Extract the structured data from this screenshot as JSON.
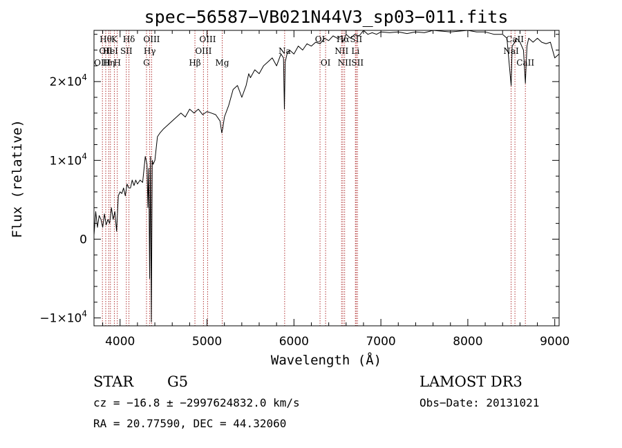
{
  "chart_data": {
    "type": "line",
    "title": "spec−56587−VB021N44V3_sp03−011.fits",
    "xlabel": "Wavelength (Å)",
    "ylabel": "Flux (relative)",
    "xlim": [
      3700,
      9050
    ],
    "ylim": [
      -11000,
      26500
    ],
    "x_ticks": [
      {
        "value": 4000,
        "label": "4000"
      },
      {
        "value": 5000,
        "label": "5000"
      },
      {
        "value": 6000,
        "label": "6000"
      },
      {
        "value": 7000,
        "label": "7000"
      },
      {
        "value": 8000,
        "label": "8000"
      },
      {
        "value": 9000,
        "label": "9000"
      }
    ],
    "y_ticks": [
      {
        "value": -10000,
        "mant": "−1×10",
        "exp": "4"
      },
      {
        "value": 0,
        "mant": "0",
        "exp": ""
      },
      {
        "value": 10000,
        "mant": "1×10",
        "exp": "4"
      },
      {
        "value": 20000,
        "mant": "2×10",
        "exp": "4"
      }
    ],
    "line_color": "#000000",
    "marker_color": "#b03030",
    "series": [
      {
        "x": [
          3700,
          3720,
          3740,
          3760,
          3780,
          3800,
          3820,
          3840,
          3860,
          3880,
          3900,
          3920,
          3940,
          3960,
          3980,
          4000,
          4020,
          4040,
          4060,
          4080,
          4100,
          4120,
          4140,
          4160,
          4180,
          4200,
          4230,
          4260,
          4290,
          4310,
          4320,
          4330,
          4340,
          4350,
          4360,
          4370,
          4380,
          4400,
          4430,
          4460,
          4500,
          4550,
          4600,
          4650,
          4700,
          4750,
          4800,
          4850,
          4900,
          4950,
          5000,
          5050,
          5100,
          5150,
          5170,
          5180,
          5200,
          5250,
          5300,
          5350,
          5400,
          5450,
          5480,
          5500,
          5550,
          5600,
          5650,
          5700,
          5750,
          5800,
          5850,
          5880,
          5890,
          5900,
          5920,
          5950,
          6000,
          6050,
          6100,
          6150,
          6200,
          6250,
          6300,
          6350,
          6400,
          6450,
          6500,
          6550,
          6560,
          6570,
          6600,
          6650,
          6700,
          6750,
          6800,
          6850,
          6900,
          6950,
          7000,
          7100,
          7200,
          7300,
          7400,
          7500,
          7600,
          7700,
          7800,
          7900,
          8000,
          8100,
          8200,
          8300,
          8400,
          8450,
          8498,
          8510,
          8540,
          8560,
          8600,
          8640,
          8662,
          8680,
          8700,
          8750,
          8800,
          8850,
          8900,
          8950,
          9000,
          9050
        ],
        "y": [
          500,
          3500,
          1500,
          3000,
          2500,
          1500,
          3200,
          1800,
          2500,
          2000,
          4000,
          2500,
          3500,
          1000,
          5500,
          6000,
          5800,
          6500,
          5500,
          7000,
          6500,
          6500,
          7500,
          6800,
          7500,
          7000,
          7500,
          7200,
          10500,
          9500,
          4000,
          9000,
          -5000,
          10500,
          -10500,
          10000,
          9500,
          10000,
          13000,
          13500,
          14000,
          14500,
          15000,
          15500,
          16000,
          15500,
          16500,
          16000,
          16500,
          15800,
          16200,
          16000,
          15800,
          15000,
          13500,
          14000,
          15500,
          17000,
          19000,
          19500,
          18000,
          19500,
          21000,
          20500,
          21500,
          21000,
          22000,
          22500,
          23000,
          22000,
          23500,
          23000,
          16500,
          22500,
          23500,
          24000,
          23500,
          24500,
          24000,
          24800,
          24500,
          25000,
          24800,
          25500,
          25200,
          25800,
          25500,
          25800,
          25000,
          25200,
          26000,
          25500,
          26000,
          25800,
          26500,
          26000,
          26200,
          26000,
          26300,
          26200,
          26300,
          26100,
          26300,
          26200,
          26500,
          26400,
          26300,
          26400,
          26500,
          26300,
          26300,
          26000,
          26000,
          25500,
          19500,
          24500,
          25000,
          25500,
          25000,
          24000,
          19800,
          24500,
          25500,
          25000,
          25500,
          25000,
          24800,
          25000,
          23000,
          23500
        ]
      }
    ],
    "markers": [
      {
        "w": 3797,
        "row": 3,
        "label": "OIII"
      },
      {
        "w": 3835,
        "row": 2,
        "label": "OII"
      },
      {
        "w": 3835,
        "row": 1,
        "label": "Hθ"
      },
      {
        "w": 3870,
        "row": 3,
        "label": "Hη"
      },
      {
        "w": 3889,
        "row": 2,
        "label": "HeI"
      },
      {
        "w": 3934,
        "row": 1,
        "label": "K"
      },
      {
        "w": 3968,
        "row": 3,
        "label": "H"
      },
      {
        "w": 4072,
        "row": 2,
        "label": "SII"
      },
      {
        "w": 4102,
        "row": 1,
        "label": "Hδ"
      },
      {
        "w": 4304,
        "row": 3,
        "label": "G"
      },
      {
        "w": 4341,
        "row": 2,
        "label": "Hγ"
      },
      {
        "w": 4363,
        "row": 1,
        "label": "OIII"
      },
      {
        "w": 4861,
        "row": 3,
        "label": "Hβ"
      },
      {
        "w": 4959,
        "row": 2,
        "label": "OIII"
      },
      {
        "w": 5007,
        "row": 1,
        "label": "OIII"
      },
      {
        "w": 5175,
        "row": 3,
        "label": "Mg"
      },
      {
        "w": 5893,
        "row": 2,
        "label": "Na"
      },
      {
        "w": 6300,
        "row": 1,
        "label": "OI"
      },
      {
        "w": 6364,
        "row": 3,
        "label": "OI"
      },
      {
        "w": 6548,
        "row": 2,
        "label": "NII"
      },
      {
        "w": 6563,
        "row": 1,
        "label": "Hα"
      },
      {
        "w": 6583,
        "row": 3,
        "label": "NII"
      },
      {
        "w": 6707,
        "row": 2,
        "label": "Li"
      },
      {
        "w": 6716,
        "row": 1,
        "label": "SII"
      },
      {
        "w": 6731,
        "row": 3,
        "label": "SII"
      },
      {
        "w": 8498,
        "row": 2,
        "label": "NaI"
      },
      {
        "w": 8542,
        "row": 1,
        "label": "CaII"
      },
      {
        "w": 8662,
        "row": 3,
        "label": "CaII"
      }
    ]
  },
  "info": {
    "object_class": "STAR",
    "subclass": "G5",
    "survey": "LAMOST DR3",
    "redshift": "cz = −16.8 ± −2997624832.0 km/s",
    "obs_date": "Obs−Date: 20131021",
    "coords": "RA =  20.77590, DEC =  44.32060"
  }
}
